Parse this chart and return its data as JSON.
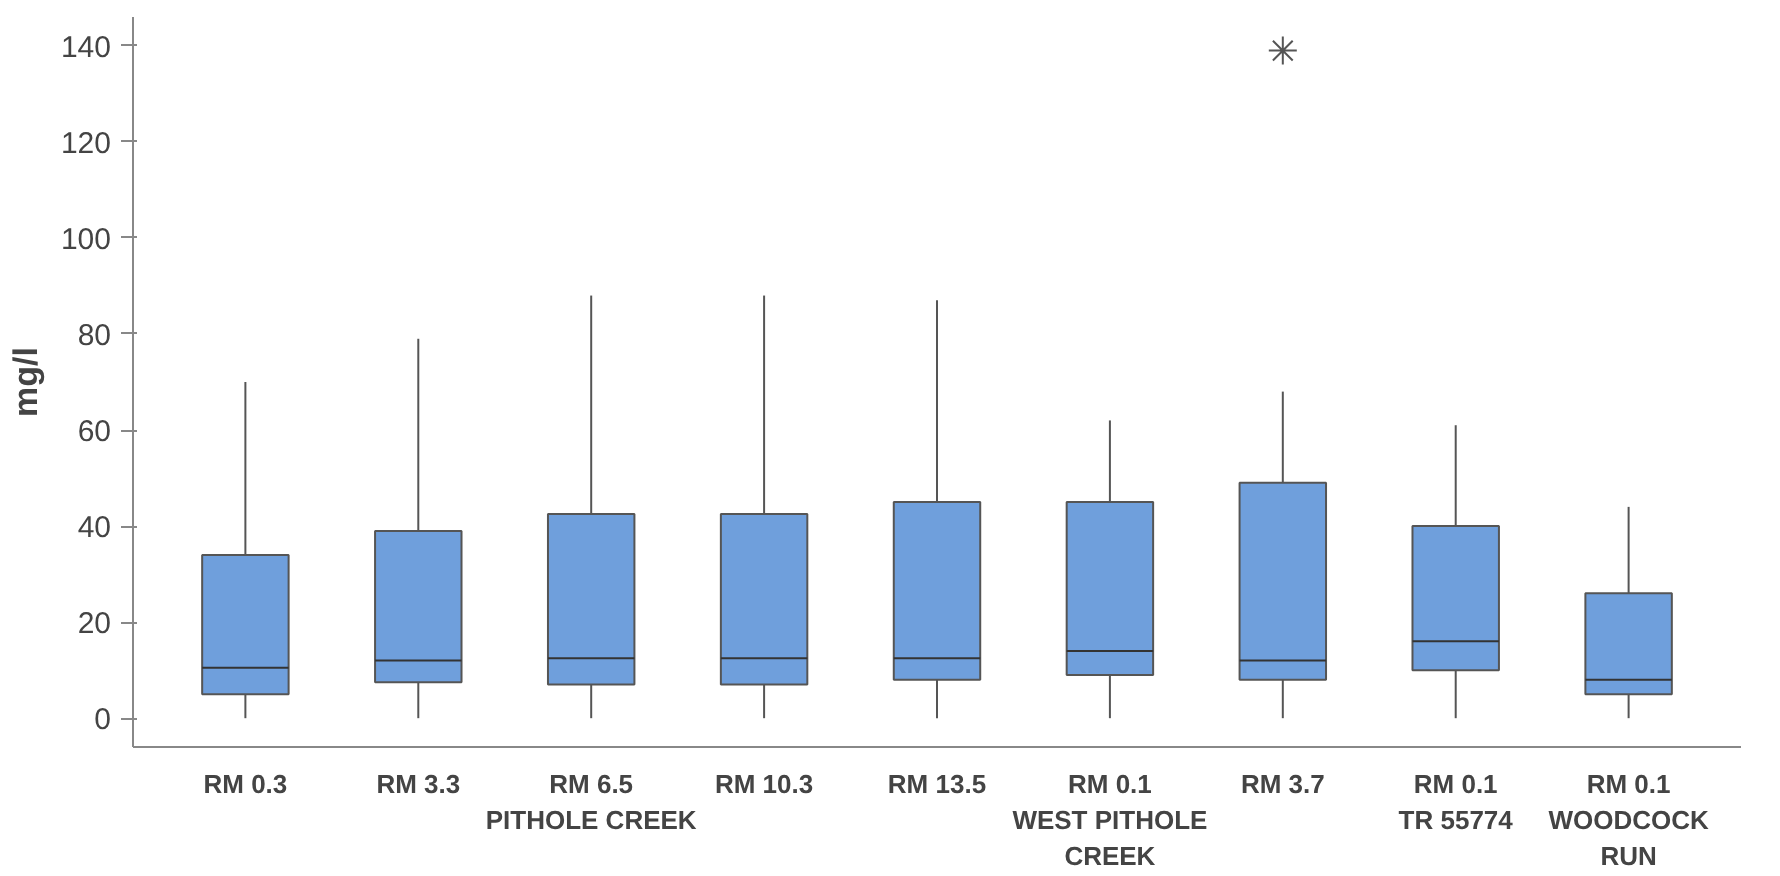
{
  "chart_data": {
    "type": "box",
    "ylabel": "mg/l",
    "ylim": [
      -6,
      146
    ],
    "yticks": [
      0,
      20,
      40,
      60,
      80,
      100,
      120,
      140
    ],
    "grid": false,
    "categories": [
      "RM 0.3",
      "RM 3.3",
      "RM 6.5\nPITHOLE CREEK",
      "RM 10.3",
      "RM 13.5",
      "RM 0.1\nWEST PITHOLE\nCREEK",
      "RM 3.7",
      "RM 0.1\nTR 55774",
      "RM 0.1\nWOODCOCK\nRUN"
    ],
    "series": [
      {
        "color": "#6f9fdc",
        "boxes": [
          {
            "low": 0,
            "q1": 5,
            "median": 10.5,
            "q3": 34,
            "high": 70
          },
          {
            "low": 0,
            "q1": 7.5,
            "median": 12,
            "q3": 39,
            "high": 79
          },
          {
            "low": 0,
            "q1": 7,
            "median": 12.5,
            "q3": 42.5,
            "high": 88
          },
          {
            "low": 0,
            "q1": 7,
            "median": 12.5,
            "q3": 42.5,
            "high": 88
          },
          {
            "low": 0,
            "q1": 8,
            "median": 12.5,
            "q3": 45,
            "high": 87
          },
          {
            "low": 0,
            "q1": 9,
            "median": 14,
            "q3": 45,
            "high": 62
          },
          {
            "low": 0,
            "q1": 8,
            "median": 12,
            "q3": 49,
            "high": 68,
            "outliers": [
              139
            ]
          },
          {
            "low": 0,
            "q1": 10,
            "median": 16,
            "q3": 40,
            "high": 61
          },
          {
            "low": 0,
            "q1": 5,
            "median": 8,
            "q3": 26,
            "high": 44
          }
        ]
      }
    ]
  }
}
